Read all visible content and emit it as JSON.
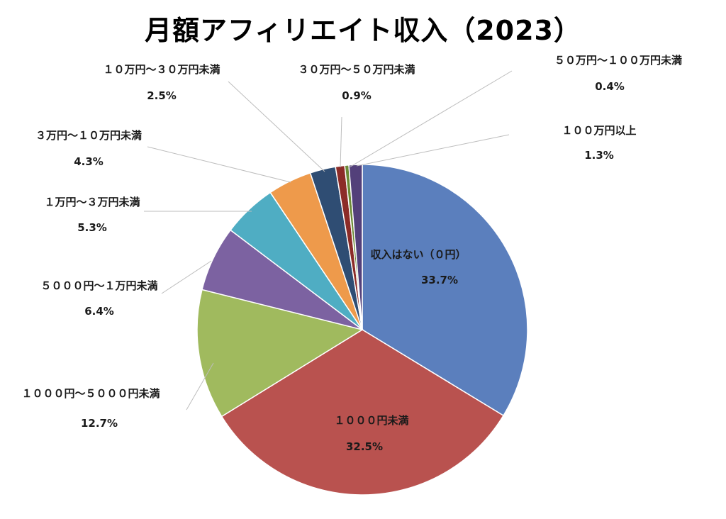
{
  "chart_data": {
    "type": "pie",
    "title": "月額アフィリエイト収入（2023）",
    "slices": [
      {
        "label": "収入はない（０円）",
        "value": 33.7,
        "pct": "33.7%",
        "color": "#5b7fbd"
      },
      {
        "label": "１０００円未満",
        "value": 32.5,
        "pct": "32.5%",
        "color": "#b9524f"
      },
      {
        "label": "１０００円～５０００円未満",
        "value": 12.7,
        "pct": "12.7%",
        "color": "#a0ba5e"
      },
      {
        "label": "５０００円～１万円未満",
        "value": 6.4,
        "pct": "6.4%",
        "color": "#7c62a1"
      },
      {
        "label": "１万円～３万円未満",
        "value": 5.3,
        "pct": "5.3%",
        "color": "#4fadc3"
      },
      {
        "label": "３万円～１０万円未満",
        "value": 4.3,
        "pct": "4.3%",
        "color": "#ee9a4b"
      },
      {
        "label": "１０万円～３０万円未満",
        "value": 2.5,
        "pct": "2.5%",
        "color": "#2f4d73"
      },
      {
        "label": "３０万円～５０万円未満",
        "value": 0.9,
        "pct": "0.9%",
        "color": "#8c2c28"
      },
      {
        "label": "５０万円～１００万円未満",
        "value": 0.4,
        "pct": "0.4%",
        "color": "#6b8a35"
      },
      {
        "label": "１００万円以上",
        "value": 1.3,
        "pct": "1.3%",
        "color": "#53407a"
      }
    ]
  }
}
